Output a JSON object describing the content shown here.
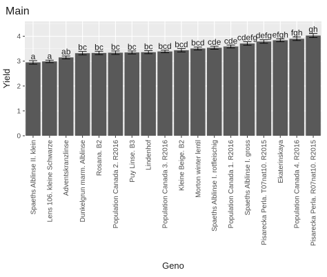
{
  "chart_data": {
    "type": "bar",
    "title": "Main",
    "xlabel": "Geno",
    "ylabel": "Yield",
    "ylim": [
      0,
      4.6
    ],
    "yticks": [
      0,
      1,
      2,
      3,
      4
    ],
    "grid": true,
    "background": "#ebebeb",
    "bar_color": "#595959",
    "categories": [
      "Spaeths Alblinse II. klein",
      "Lens 106. kleine Schwarze",
      "Adventskranzlinse",
      "Dunkelgrun marm. Alblinse",
      "Rosana. B2",
      "Population Canada 2. R2016",
      "Puy Linse. B3",
      "Lindenhof",
      "Population Canada 3. R2016",
      "Kleine Beige. B2",
      "Morton winter lentil",
      "Spaeths Alblinse I. rotfleischig",
      "Population Canada 1. R2016",
      "Spaeths Alblinse I. gross",
      "Pisarecka Perla. T07nat10. R2015",
      "Ekaterinskaya",
      "Population Canada 4. R2016",
      "Pisarecka Perla. R07nat10. R2015"
    ],
    "values": [
      2.95,
      2.99,
      3.15,
      3.32,
      3.33,
      3.34,
      3.35,
      3.36,
      3.39,
      3.44,
      3.51,
      3.54,
      3.59,
      3.71,
      3.79,
      3.84,
      3.9,
      4.03
    ],
    "error": [
      0.07,
      0.05,
      0.06,
      0.07,
      0.07,
      0.07,
      0.06,
      0.06,
      0.05,
      0.07,
      0.06,
      0.06,
      0.06,
      0.07,
      0.07,
      0.06,
      0.07,
      0.08
    ],
    "letters": [
      "a",
      "a",
      "ab",
      "bc",
      "bc",
      "bc",
      "bc",
      "bc",
      "bcd",
      "bcd",
      "bcd",
      "cde",
      "cde",
      "cdefg",
      "defg",
      "efgh",
      "fgh",
      "gh"
    ]
  }
}
